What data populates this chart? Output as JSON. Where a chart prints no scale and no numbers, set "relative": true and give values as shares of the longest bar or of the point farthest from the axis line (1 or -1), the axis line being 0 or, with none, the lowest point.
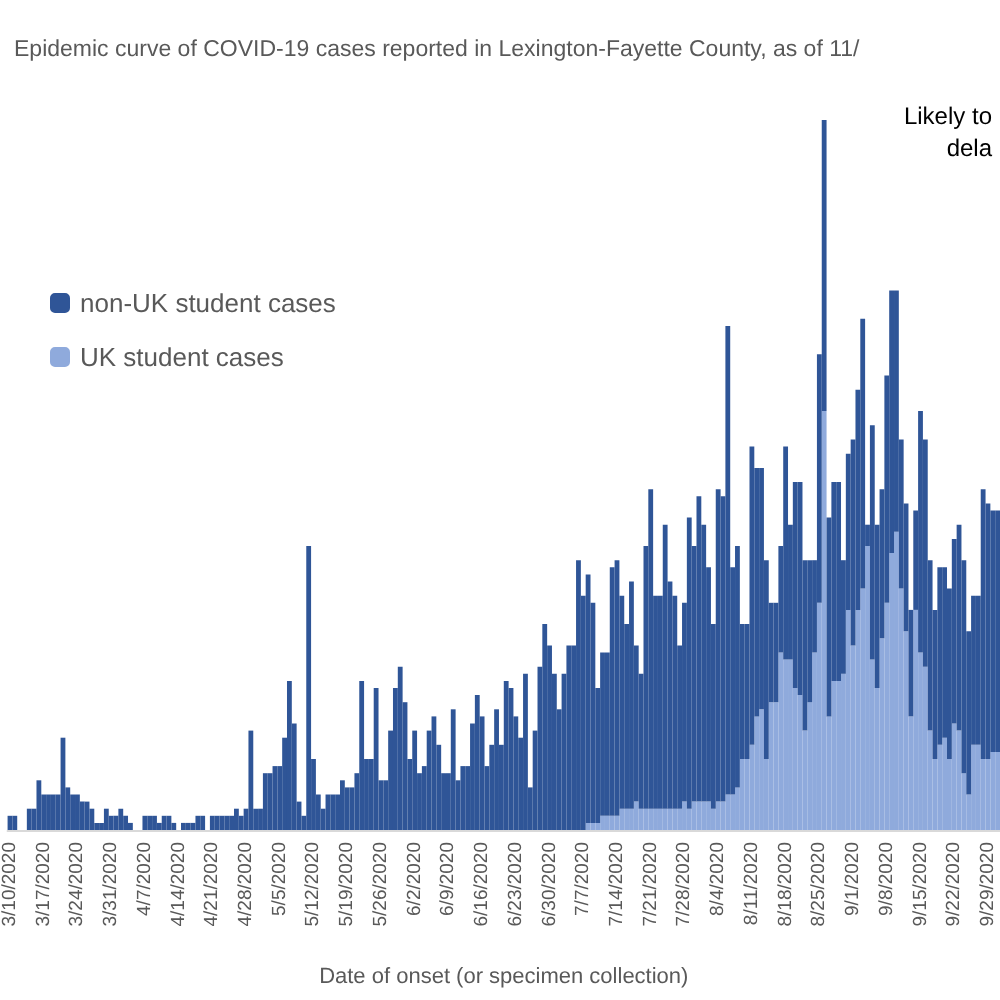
{
  "chart_data": {
    "type": "bar",
    "title": "Epidemic curve of COVID-19 cases reported in Lexington-Fayette County, as of 11/",
    "xlabel": "Date of onset (or specimen collection)",
    "annotations": [
      "Likely to",
      "dela"
    ],
    "categories": [
      "3/10/2020",
      null,
      null,
      null,
      null,
      null,
      null,
      "3/17/2020",
      null,
      null,
      null,
      null,
      null,
      null,
      "3/24/2020",
      null,
      null,
      null,
      null,
      null,
      null,
      "3/31/2020",
      null,
      null,
      null,
      null,
      null,
      null,
      "4/7/2020",
      null,
      null,
      null,
      null,
      null,
      null,
      "4/14/2020",
      null,
      null,
      null,
      null,
      null,
      null,
      "4/21/2020",
      null,
      null,
      null,
      null,
      null,
      null,
      "4/28/2020",
      null,
      null,
      null,
      null,
      null,
      null,
      "5/5/2020",
      null,
      null,
      null,
      null,
      null,
      null,
      "5/12/2020",
      null,
      null,
      null,
      null,
      null,
      null,
      "5/19/2020",
      null,
      null,
      null,
      null,
      null,
      null,
      "5/26/2020",
      null,
      null,
      null,
      null,
      null,
      null,
      "6/2/2020",
      null,
      null,
      null,
      null,
      null,
      null,
      "6/9/2020",
      null,
      null,
      null,
      null,
      null,
      null,
      "6/16/2020",
      null,
      null,
      null,
      null,
      null,
      null,
      "6/23/2020",
      null,
      null,
      null,
      null,
      null,
      null,
      "6/30/2020",
      null,
      null,
      null,
      null,
      null,
      null,
      "7/7/2020",
      null,
      null,
      null,
      null,
      null,
      null,
      "7/14/2020",
      null,
      null,
      null,
      null,
      null,
      null,
      "7/21/2020",
      null,
      null,
      null,
      null,
      null,
      null,
      "7/28/2020",
      null,
      null,
      null,
      null,
      null,
      null,
      "8/4/2020",
      null,
      null,
      null,
      null,
      null,
      null,
      "8/11/2020",
      null,
      null,
      null,
      null,
      null,
      null,
      "8/18/2020",
      null,
      null,
      null,
      null,
      null,
      null,
      "8/25/2020",
      null,
      null,
      null,
      null,
      null,
      null,
      "9/1/2020",
      null,
      null,
      null,
      null,
      null,
      null,
      "9/8/2020",
      null,
      null,
      null,
      null,
      null,
      null,
      "9/15/2020",
      null,
      null,
      null,
      null,
      null,
      null,
      "9/22/2020",
      null,
      null,
      null,
      null,
      null,
      null,
      "9/29/2020",
      null,
      null
    ],
    "relative": true,
    "stacked": true,
    "legend": "left",
    "series": [
      {
        "name": "UK student cases",
        "color": "#8faadc",
        "values": [
          0,
          0,
          0,
          0,
          0,
          0,
          0,
          0,
          0,
          0,
          0,
          0,
          0,
          0,
          0,
          0,
          0,
          0,
          0,
          0,
          0,
          0,
          0,
          0,
          0,
          0,
          0,
          0,
          0,
          0,
          0,
          0,
          0,
          0,
          0,
          0,
          0,
          0,
          0,
          0,
          0,
          0,
          0,
          0,
          0,
          0,
          0,
          0,
          0,
          0,
          0,
          0,
          0,
          0,
          0,
          0,
          0,
          0,
          0,
          0,
          0,
          0,
          0,
          0,
          0,
          0,
          0,
          0,
          0,
          0,
          0,
          0,
          0,
          0,
          0,
          0,
          0,
          0,
          0,
          0,
          0,
          0,
          0,
          0,
          0,
          0,
          0,
          0,
          0,
          0,
          0,
          0,
          0,
          0,
          0,
          0,
          0,
          0,
          0,
          0,
          0,
          0,
          0,
          0,
          0,
          0,
          0,
          0,
          0,
          0,
          0,
          0,
          0,
          0,
          0,
          0,
          0,
          0,
          0,
          0,
          0.01,
          0.01,
          0.01,
          0.02,
          0.02,
          0.02,
          0.02,
          0.03,
          0.03,
          0.03,
          0.04,
          0.03,
          0.03,
          0.03,
          0.03,
          0.03,
          0.03,
          0.03,
          0.03,
          0.03,
          0.04,
          0.03,
          0.04,
          0.04,
          0.04,
          0.04,
          0.03,
          0.04,
          0.04,
          0.05,
          0.05,
          0.06,
          0.1,
          0.1,
          0.12,
          0.16,
          0.17,
          0.1,
          0.18,
          0.18,
          0.25,
          0.24,
          0.24,
          0.2,
          0.19,
          0.14,
          0.18,
          0.25,
          0.32,
          0.59,
          0.16,
          0.21,
          0.21,
          0.22,
          0.31,
          0.26,
          0.31,
          0.34,
          0.4,
          0.24,
          0.2,
          0.27,
          0.32,
          0.39,
          0.42,
          0.34,
          0.28,
          0.16,
          0.31,
          0.25,
          0.23,
          0.14,
          0.1,
          0.12,
          0.13,
          0.1,
          0.15,
          0.14,
          0.08,
          0.05,
          0.12,
          0.12,
          0.1,
          0.1,
          0.11,
          0.11
        ]
      },
      {
        "name": "non-UK student cases",
        "color": "#2f5597",
        "values": [
          0.02,
          0.02,
          0,
          0,
          0.03,
          0.03,
          0.07,
          0.05,
          0.05,
          0.05,
          0.05,
          0.13,
          0.06,
          0.05,
          0.05,
          0.04,
          0.04,
          0.03,
          0.01,
          0.01,
          0.03,
          0.02,
          0.02,
          0.03,
          0.02,
          0.01,
          0,
          0,
          0.02,
          0.02,
          0.02,
          0.01,
          0.02,
          0.02,
          0.01,
          0,
          0.01,
          0.01,
          0.01,
          0.02,
          0.02,
          0,
          0.02,
          0.02,
          0.02,
          0.02,
          0.02,
          0.03,
          0.02,
          0.03,
          0.14,
          0.03,
          0.03,
          0.08,
          0.08,
          0.09,
          0.09,
          0.13,
          0.21,
          0.15,
          0.04,
          0.02,
          0.4,
          0.1,
          0.05,
          0.03,
          0.05,
          0.05,
          0.05,
          0.07,
          0.06,
          0.06,
          0.08,
          0.21,
          0.1,
          0.1,
          0.2,
          0.07,
          0.07,
          0.14,
          0.2,
          0.23,
          0.18,
          0.1,
          0.14,
          0.08,
          0.09,
          0.14,
          0.16,
          0.12,
          0.08,
          0.08,
          0.17,
          0.07,
          0.09,
          0.09,
          0.15,
          0.19,
          0.16,
          0.09,
          0.12,
          0.17,
          0.12,
          0.21,
          0.2,
          0.16,
          0.13,
          0.22,
          0.06,
          0.14,
          0.23,
          0.29,
          0.26,
          0.22,
          0.17,
          0.22,
          0.26,
          0.26,
          0.38,
          0.33,
          0.35,
          0.31,
          0.19,
          0.23,
          0.23,
          0.35,
          0.36,
          0.3,
          0.26,
          0.32,
          0.22,
          0.19,
          0.37,
          0.45,
          0.3,
          0.3,
          0.4,
          0.32,
          0.3,
          0.23,
          0.28,
          0.41,
          0.36,
          0.43,
          0.39,
          0.33,
          0.26,
          0.44,
          0.43,
          0.66,
          0.32,
          0.34,
          0.19,
          0.19,
          0.42,
          0.35,
          0.34,
          0.28,
          0.14,
          0.14,
          0.15,
          0.3,
          0.19,
          0.29,
          0.3,
          0.24,
          0.2,
          0.13,
          0.35,
          0.41,
          0.28,
          0.28,
          0.28,
          0.16,
          0.22,
          0.29,
          0.31,
          0.38,
          0.03,
          0.33,
          0.23,
          0.21,
          0.32,
          0.37,
          0.34,
          0.21,
          0.18,
          0.15,
          0.14,
          0.34,
          0.32,
          0.24,
          0.21,
          0.25,
          0.24,
          0.24,
          0.26,
          0.29,
          0.3,
          0.23,
          0.21,
          0.21,
          0.38,
          0.36,
          0.34,
          0.34
        ]
      }
    ]
  }
}
